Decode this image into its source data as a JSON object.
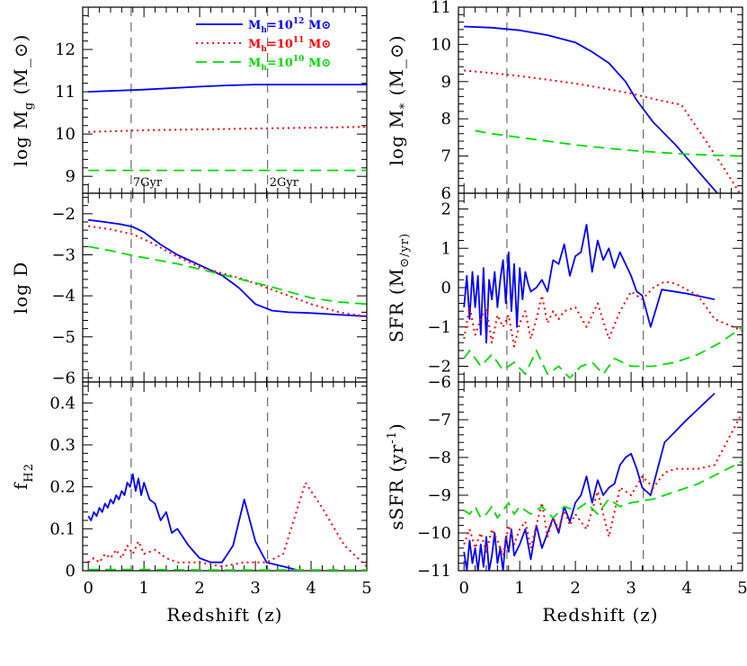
{
  "chart_data": [
    {
      "type": "line",
      "panel": "log-Mg",
      "ylabel": "log M_g (M_⊙)",
      "xlim": [
        -0.1,
        5
      ],
      "ylim": [
        8.6,
        13.0
      ],
      "yticks": [
        9,
        10,
        11,
        12
      ],
      "legend": "top-right",
      "markers": [
        {
          "label": "7Gyr",
          "x": 0.77
        },
        {
          "label": "2Gyr",
          "x": 3.22
        }
      ],
      "series": [
        {
          "name": "Mh=10^12 M⊙",
          "legend_base": "M",
          "legend_sub": "h",
          "legend_mid": "=10",
          "legend_exp": "12",
          "legend_unit": "M⊙",
          "color": "#0000ff",
          "dash": "solid",
          "x": [
            0,
            1,
            2,
            2.5,
            3,
            4,
            5
          ],
          "y": [
            11.0,
            11.05,
            11.12,
            11.15,
            11.17,
            11.17,
            11.17
          ]
        },
        {
          "name": "Mh=10^11 M⊙",
          "legend_base": "M",
          "legend_sub": "h",
          "legend_mid": "=10",
          "legend_exp": "11",
          "legend_unit": "M⊙",
          "color": "#ff0000",
          "dash": "dotted",
          "x": [
            0,
            1,
            2,
            3,
            4,
            5
          ],
          "y": [
            10.05,
            10.09,
            10.11,
            10.13,
            10.15,
            10.17
          ]
        },
        {
          "name": "Mh=10^10 M⊙",
          "legend_base": "M",
          "legend_sub": "h",
          "legend_mid": "=10",
          "legend_exp": "10",
          "legend_unit": "M⊙",
          "color": "#00dd00",
          "dash": "dashed",
          "x": [
            0,
            1,
            2,
            3,
            4,
            5
          ],
          "y": [
            9.14,
            9.14,
            9.14,
            9.14,
            9.14,
            9.14
          ]
        }
      ]
    },
    {
      "type": "line",
      "panel": "log-Mstar",
      "ylabel": "log M_* (M_⊙)",
      "xlim": [
        -0.1,
        5
      ],
      "ylim": [
        6,
        11
      ],
      "yticks": [
        6,
        7,
        8,
        9,
        10,
        11
      ],
      "markers": [
        {
          "x": 0.77
        },
        {
          "x": 3.22
        }
      ],
      "series": [
        {
          "name": "Mh=10^12 M⊙",
          "color": "#0000ff",
          "dash": "solid",
          "x": [
            0,
            0.5,
            1,
            1.5,
            2,
            2.3,
            2.6,
            2.9,
            3.1,
            3.4,
            3.8,
            4.2,
            4.55
          ],
          "y": [
            10.48,
            10.45,
            10.38,
            10.25,
            10.05,
            9.8,
            9.5,
            9.0,
            8.5,
            7.9,
            7.3,
            6.6,
            6.0
          ]
        },
        {
          "name": "Mh=10^11 M⊙",
          "color": "#ff0000",
          "dash": "dotted",
          "x": [
            0,
            0.5,
            1,
            1.5,
            2,
            2.5,
            3,
            3.5,
            3.9,
            4.3,
            4.7,
            4.95
          ],
          "y": [
            9.3,
            9.23,
            9.15,
            9.05,
            8.95,
            8.82,
            8.68,
            8.5,
            8.38,
            7.5,
            6.6,
            6.0
          ]
        },
        {
          "name": "Mh=10^10 M⊙",
          "color": "#00dd00",
          "dash": "dashed",
          "x": [
            0.2,
            0.5,
            1,
            1.5,
            2,
            2.5,
            3,
            3.5,
            4,
            4.5,
            5
          ],
          "y": [
            7.68,
            7.6,
            7.5,
            7.4,
            7.3,
            7.22,
            7.15,
            7.1,
            7.05,
            7.02,
            7.0
          ]
        }
      ]
    },
    {
      "type": "line",
      "panel": "log-D",
      "ylabel": "log D",
      "xlim": [
        -0.1,
        5
      ],
      "ylim": [
        -6.1,
        -1.5
      ],
      "yticks": [
        -6,
        -5,
        -4,
        -3,
        -2
      ],
      "markers": [
        {
          "x": 0.77
        },
        {
          "x": 3.22
        }
      ],
      "series": [
        {
          "name": "Mh=10^12 M⊙",
          "color": "#0000ff",
          "dash": "solid",
          "x": [
            0,
            0.3,
            0.6,
            0.8,
            1.0,
            1.3,
            1.6,
            2.0,
            2.4,
            2.7,
            3.0,
            3.3,
            3.6,
            4.0,
            4.5,
            5.0
          ],
          "y": [
            -2.15,
            -2.2,
            -2.26,
            -2.32,
            -2.45,
            -2.75,
            -3.0,
            -3.25,
            -3.5,
            -3.8,
            -4.2,
            -4.36,
            -4.4,
            -4.42,
            -4.46,
            -4.5
          ]
        },
        {
          "name": "Mh=10^11 M⊙",
          "color": "#ff0000",
          "dash": "dotted",
          "x": [
            0,
            0.4,
            0.8,
            1.2,
            1.6,
            2.0,
            2.4,
            2.8,
            3.2,
            3.6,
            4.0,
            4.5,
            5.0
          ],
          "y": [
            -2.3,
            -2.38,
            -2.5,
            -2.75,
            -3.05,
            -3.3,
            -3.45,
            -3.6,
            -3.8,
            -4.0,
            -4.2,
            -4.4,
            -4.5
          ]
        },
        {
          "name": "Mh=10^10 M⊙",
          "color": "#00dd00",
          "dash": "dashed",
          "x": [
            0,
            0.4,
            0.8,
            1.2,
            1.6,
            2.0,
            2.4,
            2.8,
            3.2,
            3.6,
            4.0,
            4.5,
            5.0
          ],
          "y": [
            -2.8,
            -2.9,
            -3.02,
            -3.12,
            -3.22,
            -3.35,
            -3.48,
            -3.62,
            -3.75,
            -3.9,
            -4.05,
            -4.15,
            -4.2
          ]
        }
      ]
    },
    {
      "type": "line",
      "panel": "SFR",
      "ylabel": "SFR (M_⊙/yr)",
      "xlim": [
        -0.1,
        5
      ],
      "ylim": [
        -2.4,
        2.4
      ],
      "yticks": [
        -2,
        -1,
        0,
        1,
        2
      ],
      "markers": [
        {
          "x": 0.77
        },
        {
          "x": 3.22
        }
      ],
      "series": [
        {
          "name": "Mh=10^12 M⊙",
          "color": "#0000ff",
          "dash": "solid",
          "x": [
            0.0,
            0.05,
            0.1,
            0.15,
            0.2,
            0.25,
            0.3,
            0.35,
            0.4,
            0.45,
            0.5,
            0.55,
            0.6,
            0.65,
            0.7,
            0.75,
            0.8,
            0.85,
            0.9,
            0.95,
            1.0,
            1.05,
            1.1,
            1.15,
            1.2,
            1.3,
            1.4,
            1.5,
            1.6,
            1.7,
            1.8,
            1.9,
            2.0,
            2.1,
            2.2,
            2.3,
            2.4,
            2.5,
            2.6,
            2.7,
            2.8,
            2.9,
            3.0,
            3.1,
            3.2,
            3.35,
            3.55,
            4.0,
            4.5
          ],
          "y": [
            -0.5,
            0.3,
            -0.8,
            0.4,
            -0.5,
            0.3,
            -1.2,
            0.5,
            -1.4,
            0.2,
            -0.3,
            0.4,
            -0.5,
            0.2,
            0.7,
            -0.4,
            0.9,
            -0.6,
            0.6,
            -1.0,
            0.5,
            -0.3,
            0.4,
            0.1,
            -0.1,
            0.0,
            0.2,
            -0.1,
            0.7,
            0.6,
            1.1,
            0.3,
            0.8,
            0.9,
            1.6,
            0.4,
            1.2,
            0.7,
            1.0,
            0.5,
            0.9,
            0.6,
            0.3,
            -0.1,
            -0.2,
            -1.0,
            -0.05,
            -0.15,
            -0.3
          ]
        },
        {
          "name": "Mh=10^11 M⊙",
          "color": "#ff0000",
          "dash": "dotted",
          "x": [
            0.0,
            0.1,
            0.2,
            0.3,
            0.4,
            0.5,
            0.6,
            0.7,
            0.8,
            0.9,
            1.0,
            1.1,
            1.2,
            1.3,
            1.4,
            1.5,
            1.6,
            1.7,
            1.8,
            2.0,
            2.2,
            2.4,
            2.6,
            2.8,
            3.0,
            3.2,
            3.4,
            3.6,
            3.8,
            4.2,
            4.5,
            5.0
          ],
          "y": [
            -1.3,
            -0.5,
            -1.2,
            -0.8,
            -0.5,
            -1.4,
            -0.7,
            -1.0,
            -0.7,
            -1.5,
            -0.9,
            -0.6,
            -1.3,
            -0.8,
            -0.2,
            -0.9,
            -0.6,
            -0.8,
            -0.6,
            -0.5,
            -1.0,
            -0.4,
            -1.3,
            -0.6,
            -0.1,
            -0.3,
            0.0,
            0.15,
            0.1,
            -0.2,
            -0.8,
            -1.1
          ]
        },
        {
          "name": "Mh=10^10 M⊙",
          "color": "#00dd00",
          "dash": "dashed",
          "x": [
            0.0,
            0.1,
            0.3,
            0.5,
            0.7,
            0.9,
            1.1,
            1.3,
            1.5,
            1.7,
            1.9,
            2.1,
            2.3,
            2.5,
            2.7,
            3.0,
            3.4,
            3.8,
            4.2,
            4.6,
            5.0
          ],
          "y": [
            -1.8,
            -1.6,
            -2.0,
            -1.7,
            -2.1,
            -1.9,
            -2.2,
            -1.6,
            -2.2,
            -2.0,
            -2.3,
            -2.0,
            -1.9,
            -2.2,
            -1.8,
            -2.0,
            -2.0,
            -1.9,
            -1.7,
            -1.4,
            -1.0
          ]
        }
      ]
    },
    {
      "type": "line",
      "panel": "fH2",
      "ylabel": "f_H2",
      "xlabel": "Redshift (z)",
      "xlim": [
        -0.1,
        5
      ],
      "ylim": [
        0,
        0.45
      ],
      "yticks": [
        0,
        0.1,
        0.2,
        0.3,
        0.4
      ],
      "xticks": [
        0,
        1,
        2,
        3,
        4,
        5
      ],
      "markers": [
        {
          "x": 0.77
        },
        {
          "x": 3.22
        }
      ],
      "series": [
        {
          "name": "Mh=10^12 M⊙",
          "color": "#0000ff",
          "dash": "solid",
          "x": [
            0.0,
            0.05,
            0.1,
            0.15,
            0.2,
            0.25,
            0.3,
            0.35,
            0.4,
            0.45,
            0.5,
            0.55,
            0.6,
            0.65,
            0.7,
            0.75,
            0.8,
            0.85,
            0.9,
            0.95,
            1.0,
            1.1,
            1.2,
            1.3,
            1.4,
            1.5,
            1.6,
            1.8,
            2.0,
            2.2,
            2.4,
            2.6,
            2.8,
            3.0,
            3.2,
            3.5,
            3.8
          ],
          "y": [
            0.13,
            0.12,
            0.14,
            0.13,
            0.15,
            0.14,
            0.16,
            0.15,
            0.17,
            0.16,
            0.18,
            0.17,
            0.19,
            0.18,
            0.21,
            0.2,
            0.23,
            0.19,
            0.22,
            0.18,
            0.21,
            0.17,
            0.16,
            0.12,
            0.14,
            0.09,
            0.1,
            0.06,
            0.03,
            0.02,
            0.02,
            0.06,
            0.17,
            0.07,
            0.02,
            0.01,
            0.0
          ]
        },
        {
          "name": "Mh=10^11 M⊙",
          "color": "#ff0000",
          "dash": "dotted",
          "x": [
            0.0,
            0.1,
            0.2,
            0.3,
            0.4,
            0.5,
            0.6,
            0.7,
            0.8,
            0.9,
            1.0,
            1.2,
            1.4,
            1.6,
            1.8,
            2.0,
            2.4,
            2.8,
            3.2,
            3.5,
            3.9,
            4.2,
            4.6,
            5.0
          ],
          "y": [
            0.02,
            0.03,
            0.02,
            0.04,
            0.03,
            0.05,
            0.03,
            0.06,
            0.04,
            0.07,
            0.04,
            0.05,
            0.03,
            0.02,
            0.02,
            0.02,
            0.01,
            0.02,
            0.02,
            0.04,
            0.21,
            0.15,
            0.06,
            0.01
          ]
        },
        {
          "name": "Mh=10^10 M⊙",
          "color": "#00dd00",
          "dash": "dashed",
          "x": [
            0,
            1,
            2,
            3,
            4,
            5
          ],
          "y": [
            0.003,
            0.003,
            0.002,
            0.002,
            0.002,
            0.002
          ]
        }
      ]
    },
    {
      "type": "line",
      "panel": "sSFR",
      "ylabel": "sSFR (yr^-1)",
      "xlabel": "Redshift (z)",
      "xlim": [
        -0.1,
        5
      ],
      "ylim": [
        -11,
        -6
      ],
      "yticks": [
        -11,
        -10,
        -9,
        -8,
        -7,
        -6
      ],
      "xticks": [
        0,
        1,
        2,
        3,
        4,
        5
      ],
      "markers": [
        {
          "x": 0.77
        },
        {
          "x": 3.22
        }
      ],
      "series": [
        {
          "name": "Mh=10^12 M⊙",
          "color": "#0000ff",
          "dash": "solid",
          "x": [
            0.0,
            0.05,
            0.1,
            0.15,
            0.2,
            0.25,
            0.3,
            0.35,
            0.4,
            0.45,
            0.5,
            0.55,
            0.6,
            0.65,
            0.7,
            0.75,
            0.8,
            0.85,
            0.9,
            1.0,
            1.1,
            1.2,
            1.3,
            1.4,
            1.5,
            1.6,
            1.7,
            1.8,
            1.9,
            2.0,
            2.1,
            2.2,
            2.3,
            2.4,
            2.5,
            2.6,
            2.7,
            2.8,
            2.9,
            3.0,
            3.1,
            3.2,
            3.35,
            3.6,
            4.0,
            4.5
          ],
          "y": [
            -10.5,
            -11.0,
            -10.2,
            -10.8,
            -10.4,
            -11.0,
            -10.3,
            -10.9,
            -10.1,
            -11.0,
            -10.6,
            -10.0,
            -10.8,
            -10.4,
            -11.0,
            -10.1,
            -10.5,
            -9.9,
            -10.6,
            -10.3,
            -9.9,
            -10.7,
            -9.8,
            -10.4,
            -10.0,
            -9.6,
            -10.0,
            -9.3,
            -9.7,
            -9.2,
            -9.0,
            -8.5,
            -9.2,
            -8.6,
            -9.0,
            -8.8,
            -8.7,
            -8.2,
            -8.0,
            -7.9,
            -8.3,
            -8.8,
            -9.0,
            -7.6,
            -7.0,
            -6.3
          ]
        },
        {
          "name": "Mh=10^11 M⊙",
          "color": "#ff0000",
          "dash": "dotted",
          "x": [
            0.0,
            0.1,
            0.2,
            0.3,
            0.4,
            0.5,
            0.6,
            0.7,
            0.8,
            0.9,
            1.0,
            1.1,
            1.2,
            1.3,
            1.4,
            1.5,
            1.6,
            1.7,
            1.8,
            1.9,
            2.0,
            2.2,
            2.4,
            2.6,
            2.8,
            3.0,
            3.2,
            3.4,
            3.6,
            3.8,
            4.2,
            4.5,
            5.0
          ],
          "y": [
            -10.3,
            -9.9,
            -10.4,
            -10.0,
            -10.5,
            -9.9,
            -10.2,
            -10.6,
            -9.8,
            -10.3,
            -9.9,
            -9.7,
            -10.4,
            -9.8,
            -9.2,
            -10.1,
            -9.6,
            -9.9,
            -9.4,
            -9.8,
            -9.5,
            -9.9,
            -8.9,
            -10.1,
            -8.8,
            -9.0,
            -8.5,
            -8.8,
            -8.4,
            -8.3,
            -8.3,
            -8.2,
            -6.8
          ]
        },
        {
          "name": "Mh=10^10 M⊙",
          "color": "#00dd00",
          "dash": "dashed",
          "x": [
            0.0,
            0.1,
            0.2,
            0.3,
            0.4,
            0.5,
            0.6,
            0.7,
            0.8,
            0.9,
            1.0,
            1.2,
            1.4,
            1.6,
            1.8,
            2.0,
            2.2,
            2.4,
            2.6,
            2.8,
            3.0,
            3.4,
            3.8,
            4.2,
            4.6,
            5.0
          ],
          "y": [
            -9.4,
            -9.5,
            -9.3,
            -9.6,
            -9.5,
            -9.3,
            -9.6,
            -9.4,
            -9.2,
            -9.5,
            -9.3,
            -9.5,
            -9.3,
            -9.6,
            -9.3,
            -9.4,
            -9.2,
            -9.5,
            -9.1,
            -9.3,
            -9.2,
            -9.1,
            -8.9,
            -8.7,
            -8.4,
            -8.1
          ]
        }
      ]
    }
  ]
}
